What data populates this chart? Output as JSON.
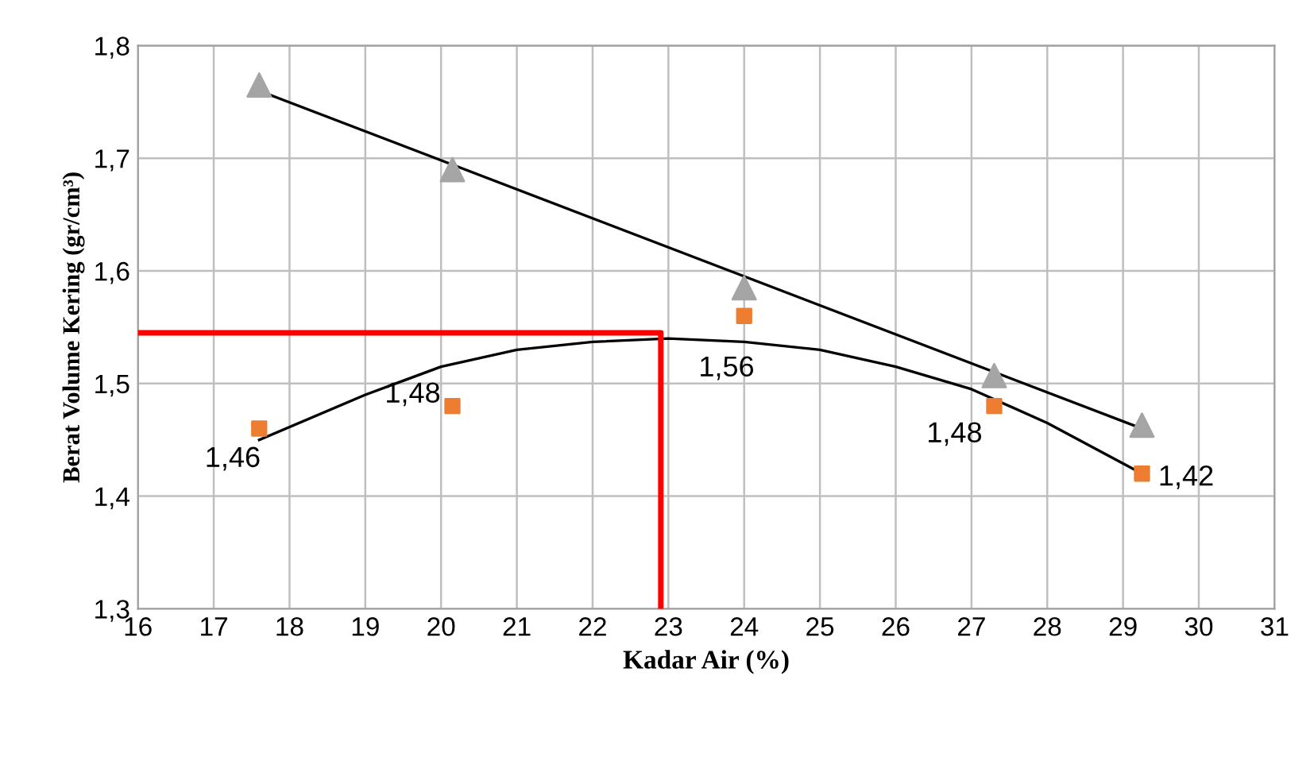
{
  "chart_data": {
    "type": "line",
    "xlabel": "Kadar Air (%)",
    "ylabel": "Berat Volume Kering (gr/cm³)",
    "xlim": [
      16,
      31
    ],
    "xticks": [
      16,
      17,
      18,
      19,
      20,
      21,
      22,
      23,
      24,
      25,
      26,
      27,
      28,
      29,
      30,
      31
    ],
    "ylim": [
      1.3,
      1.8
    ],
    "yticks": [
      {
        "value": 1.3,
        "label": "1,3"
      },
      {
        "value": 1.4,
        "label": "1,4"
      },
      {
        "value": 1.5,
        "label": "1,5"
      },
      {
        "value": 1.6,
        "label": "1,6"
      },
      {
        "value": 1.7,
        "label": "1,7"
      },
      {
        "value": 1.8,
        "label": "1,8"
      }
    ],
    "grid": true,
    "legend": false,
    "series": [
      {
        "color": "#000000",
        "marker": "none",
        "x": [
          17.6,
          29.25
        ],
        "values": [
          1.76,
          1.46
        ]
      },
      {
        "type": "scatter",
        "color": "#a5a5a5",
        "marker": "triangle",
        "x": [
          17.6,
          20.15,
          24.0,
          27.3,
          29.25
        ],
        "values": [
          1.765,
          1.69,
          1.585,
          1.507,
          1.463
        ]
      },
      {
        "color": "#000000",
        "marker": "none",
        "x": [
          17.6,
          19,
          20,
          21,
          22,
          23,
          24,
          25,
          26,
          27,
          28,
          29.25
        ],
        "values": [
          1.45,
          1.49,
          1.515,
          1.53,
          1.537,
          1.54,
          1.537,
          1.53,
          1.515,
          1.495,
          1.465,
          1.42
        ]
      },
      {
        "type": "scatter",
        "color": "#ed7d31",
        "marker": "square",
        "x": [
          17.6,
          20.15,
          24.0,
          27.3,
          29.25
        ],
        "values": [
          1.46,
          1.48,
          1.56,
          1.48,
          1.42
        ],
        "value_labels": [
          "1,46",
          "1,48",
          "1,56",
          "1,48",
          "1,42"
        ]
      },
      {
        "color": "#ff0000",
        "marker": "none",
        "x": [
          16,
          22.9,
          22.9
        ],
        "values": [
          1.545,
          1.545,
          1.3
        ]
      }
    ]
  }
}
